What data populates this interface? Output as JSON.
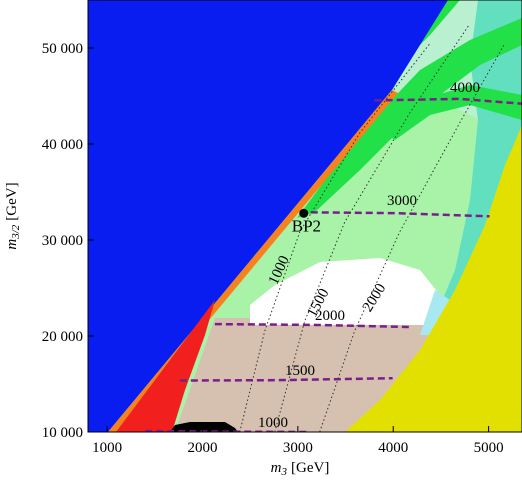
{
  "chart_data": {
    "type": "contour",
    "x_label": {
      "symbol": "m",
      "subscript": "3",
      "unit": "[GeV]"
    },
    "y_label": {
      "symbol": "m",
      "subscript": "3/2",
      "unit": "[GeV]"
    },
    "xlim": [
      800,
      5350
    ],
    "ylim": [
      10000,
      55000
    ],
    "xticks": [
      1000,
      2000,
      3000,
      4000,
      5000
    ],
    "yticks": [
      {
        "value": 10000,
        "label": "10 000"
      },
      {
        "value": 20000,
        "label": "20 000"
      },
      {
        "value": 30000,
        "label": "30 000"
      },
      {
        "value": 40000,
        "label": "40 000"
      },
      {
        "value": 50000,
        "label": "50 000"
      }
    ],
    "contours": [
      {
        "label": 1000,
        "style": "dashed",
        "color": "#7a1f8a",
        "x": [
          1400,
          2000,
          3100
        ],
        "y": [
          10100,
          10050,
          10000
        ]
      },
      {
        "label": 1500,
        "style": "dashed",
        "color": "#7a1f8a",
        "x": [
          1763,
          2800,
          3994
        ],
        "y": [
          15360,
          15400,
          15600
        ]
      },
      {
        "label": 2000,
        "style": "dashed",
        "color": "#7a1f8a",
        "x": [
          2130,
          3200,
          4172
        ],
        "y": [
          21240,
          21150,
          20930
        ]
      },
      {
        "label": 3000,
        "style": "dashed",
        "color": "#7a1f8a",
        "x": [
          3020,
          4000,
          5010
        ],
        "y": [
          32890,
          32800,
          32470
        ]
      },
      {
        "label": 4000,
        "style": "dashed",
        "color": "#7a1f8a",
        "x": [
          3805,
          4700,
          5345
        ],
        "y": [
          44540,
          44700,
          44200
        ]
      },
      {
        "label": 1000,
        "style": "dotted",
        "color": "#333333",
        "x": [
          2391,
          2653,
          3020,
          3648,
          4381
        ],
        "y": [
          10000,
          20516,
          30826,
          41136,
          50415
        ]
      },
      {
        "label": 1500,
        "style": "dotted",
        "color": "#333333",
        "x": [
          2758,
          3072,
          3491,
          4171,
          4800
        ],
        "y": [
          10000,
          21547,
          31857,
          43198,
          52477
        ]
      },
      {
        "label": 2000,
        "style": "dotted",
        "color": "#333333",
        "x": [
          3229,
          3595,
          4067,
          4695,
          5166
        ],
        "y": [
          10000,
          20516,
          30826,
          42167,
          50415
        ]
      }
    ],
    "point": {
      "label": "BP2",
      "x": 3062,
      "y": 32785,
      "color": "#000000"
    }
  }
}
